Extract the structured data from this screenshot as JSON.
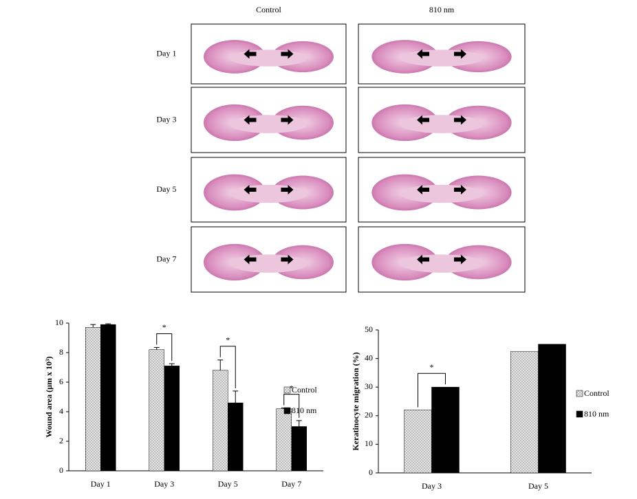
{
  "histology": {
    "columns": [
      "Control",
      "810 nm"
    ],
    "rows": [
      "Day 1",
      "Day 3",
      "Day 5",
      "Day 7"
    ]
  },
  "chart_data": [
    {
      "type": "bar",
      "ylabel": "Wound area (µm x 10³)",
      "categories": [
        "Day 1",
        "Day 3",
        "Day 5",
        "Day 7"
      ],
      "series": [
        {
          "name": "Control",
          "color": "#e6e6e6",
          "fill": "dots",
          "values": [
            9.7,
            8.2,
            6.8,
            4.2
          ],
          "errors": [
            0.2,
            0.15,
            0.7,
            0.05
          ]
        },
        {
          "name": "810 nm",
          "color": "#000000",
          "fill": "solid",
          "values": [
            9.9,
            7.1,
            4.6,
            3.0
          ],
          "errors": [
            0.05,
            0.15,
            0.8,
            0.4
          ]
        }
      ],
      "ylim": [
        0,
        10
      ],
      "yticks": [
        0,
        2,
        4,
        6,
        8,
        10
      ],
      "legend": "right",
      "annotations": [
        {
          "category": "Day 3",
          "text": "*"
        },
        {
          "category": "Day 5",
          "text": "*"
        },
        {
          "category": "Day 7",
          "text": "*"
        }
      ]
    },
    {
      "type": "bar",
      "ylabel": "Keratinocyte migration (%)",
      "categories": [
        "Day 3",
        "Day 5"
      ],
      "series": [
        {
          "name": "Control",
          "color": "#e6e6e6",
          "fill": "dots",
          "values": [
            22,
            42.5
          ]
        },
        {
          "name": "810 nm",
          "color": "#000000",
          "fill": "solid",
          "values": [
            30,
            45
          ]
        }
      ],
      "ylim": [
        0,
        50
      ],
      "yticks": [
        0,
        10,
        20,
        30,
        40,
        50
      ],
      "legend": "right",
      "annotations": [
        {
          "category": "Day 3",
          "text": "*"
        }
      ]
    }
  ]
}
